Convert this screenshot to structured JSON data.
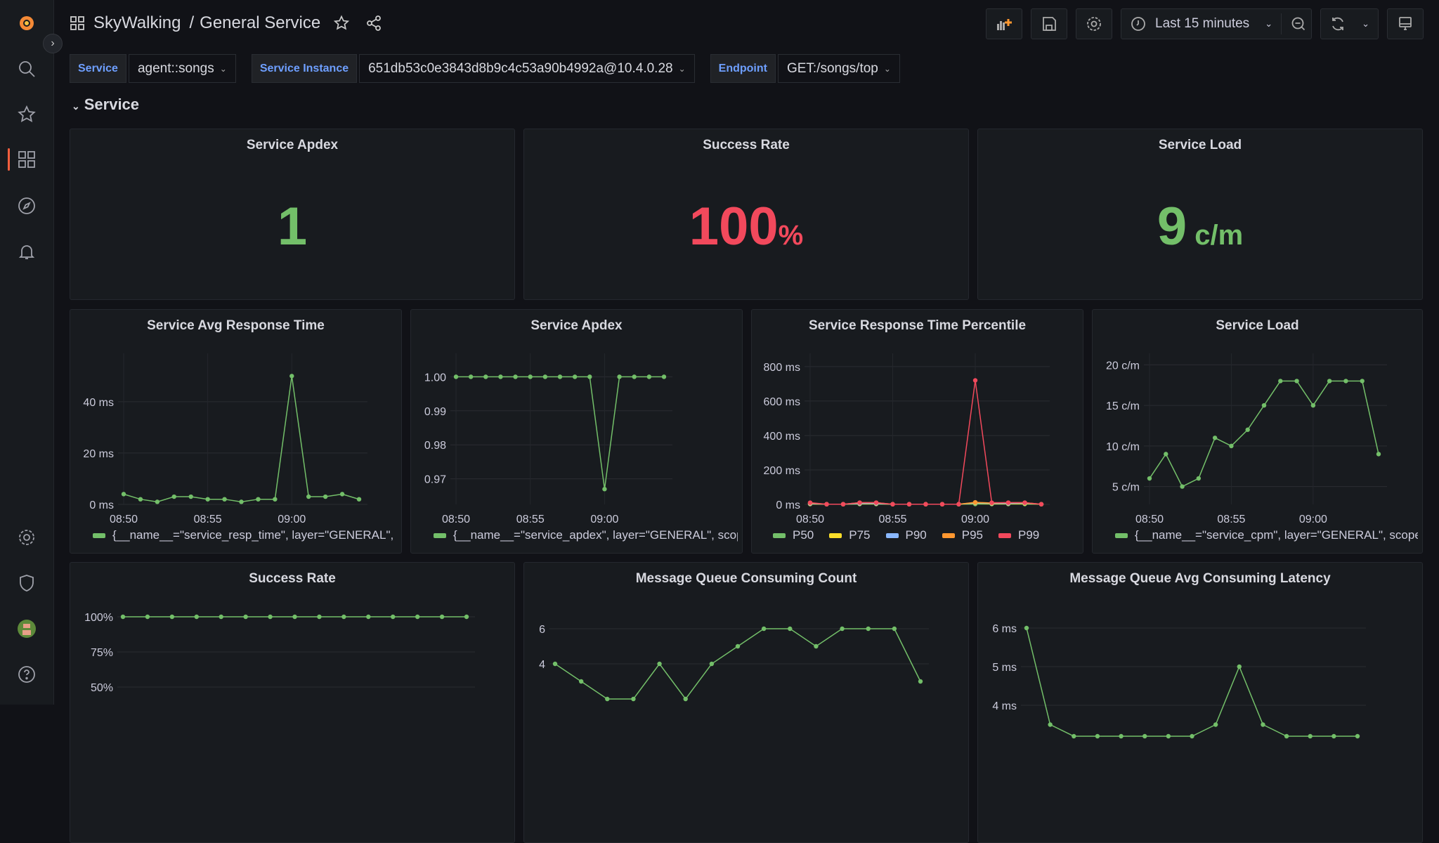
{
  "header": {
    "breadcrumb_root": "SkyWalking",
    "breadcrumb_sep": "/",
    "title": "General Service",
    "time_range": "Last 15 minutes"
  },
  "variables": [
    {
      "label": "Service",
      "value": "agent::songs"
    },
    {
      "label": "Service Instance",
      "value": "651db53c0e3843d8b9c4c53a90b4992a@10.4.0.28"
    },
    {
      "label": "Endpoint",
      "value": "GET:/songs/top"
    }
  ],
  "row_title": "Service",
  "colors": {
    "green": "#73bf69",
    "red": "#f2495c",
    "yellow": "#fade2a",
    "blue": "#8ab8ff",
    "orange": "#ff9830",
    "accent": "#f55f3e"
  },
  "stats": [
    {
      "title": "Service Apdex",
      "value": "1",
      "unit": "",
      "color": "#73bf69"
    },
    {
      "title": "Success Rate",
      "value": "100",
      "unit": "%",
      "color": "#f2495c"
    },
    {
      "title": "Service Load",
      "value": "9",
      "unit": " c/m",
      "color": "#73bf69"
    }
  ],
  "chart_data": [
    {
      "type": "line",
      "title": "Service Avg Response Time",
      "x": [
        "08:50",
        "08:51",
        "08:52",
        "08:53",
        "08:54",
        "08:55",
        "08:56",
        "08:57",
        "08:58",
        "08:59",
        "09:00",
        "09:01",
        "09:02",
        "09:03",
        "09:04"
      ],
      "xticks": [
        "08:50",
        "08:55",
        "09:00"
      ],
      "yticks": [
        {
          "v": 0,
          "l": "0 ms"
        },
        {
          "v": 20,
          "l": "20 ms"
        },
        {
          "v": 40,
          "l": "40 ms"
        }
      ],
      "ylim": [
        0,
        55
      ],
      "series": [
        {
          "name": "{__name__=\"service_resp_time\", layer=\"GENERAL\", scop",
          "color": "#73bf69",
          "values": [
            4,
            2,
            1,
            3,
            3,
            2,
            2,
            1,
            2,
            2,
            50,
            3,
            3,
            4,
            2
          ]
        }
      ]
    },
    {
      "type": "line",
      "title": "Service Apdex",
      "x": [
        "08:50",
        "08:51",
        "08:52",
        "08:53",
        "08:54",
        "08:55",
        "08:56",
        "08:57",
        "08:58",
        "08:59",
        "09:00",
        "09:01",
        "09:02",
        "09:03",
        "09:04"
      ],
      "xticks": [
        "08:50",
        "08:55",
        "09:00"
      ],
      "yticks": [
        {
          "v": 0.97,
          "l": "0.97"
        },
        {
          "v": 0.98,
          "l": "0.98"
        },
        {
          "v": 0.99,
          "l": "0.99"
        },
        {
          "v": 1.0,
          "l": "1.00"
        }
      ],
      "ylim": [
        0.9625,
        1.004
      ],
      "series": [
        {
          "name": "{__name__=\"service_apdex\", layer=\"GENERAL\", scope='",
          "color": "#73bf69",
          "values": [
            1,
            1,
            1,
            1,
            1,
            1,
            1,
            1,
            1,
            1,
            0.967,
            1,
            1,
            1,
            1
          ]
        }
      ]
    },
    {
      "type": "line",
      "title": "Service Response Time Percentile",
      "x": [
        "08:50",
        "08:51",
        "08:52",
        "08:53",
        "08:54",
        "08:55",
        "08:56",
        "08:57",
        "08:58",
        "08:59",
        "09:00",
        "09:01",
        "09:02",
        "09:03",
        "09:04"
      ],
      "xticks": [
        "08:50",
        "08:55",
        "09:00"
      ],
      "yticks": [
        {
          "v": 0,
          "l": "0 ms"
        },
        {
          "v": 200,
          "l": "200 ms"
        },
        {
          "v": 400,
          "l": "400 ms"
        },
        {
          "v": 600,
          "l": "600 ms"
        },
        {
          "v": 800,
          "l": "800 ms"
        }
      ],
      "ylim": [
        0,
        820
      ],
      "series": [
        {
          "name": "P50",
          "color": "#73bf69",
          "values": [
            2,
            1,
            1,
            2,
            2,
            1,
            1,
            1,
            1,
            1,
            2,
            2,
            2,
            2,
            1
          ]
        },
        {
          "name": "P75",
          "color": "#fade2a",
          "values": [
            3,
            1,
            1,
            4,
            4,
            1,
            1,
            1,
            1,
            1,
            8,
            4,
            4,
            5,
            1
          ]
        },
        {
          "name": "P90",
          "color": "#8ab8ff",
          "values": [
            5,
            1,
            1,
            6,
            6,
            1,
            1,
            1,
            1,
            1,
            10,
            6,
            6,
            8,
            1
          ]
        },
        {
          "name": "P95",
          "color": "#ff9830",
          "values": [
            8,
            1,
            1,
            10,
            10,
            1,
            1,
            1,
            1,
            1,
            12,
            8,
            10,
            10,
            1
          ]
        },
        {
          "name": "P99",
          "color": "#f2495c",
          "values": [
            10,
            1,
            1,
            10,
            10,
            1,
            1,
            1,
            1,
            1,
            720,
            10,
            10,
            10,
            1
          ]
        }
      ]
    },
    {
      "type": "line",
      "title": "Service Load",
      "x": [
        "08:50",
        "08:51",
        "08:52",
        "08:53",
        "08:54",
        "08:55",
        "08:56",
        "08:57",
        "08:58",
        "08:59",
        "09:00",
        "09:01",
        "09:02",
        "09:03",
        "09:04"
      ],
      "xticks": [
        "08:50",
        "08:55",
        "09:00"
      ],
      "yticks": [
        {
          "v": 5,
          "l": "5 c/m"
        },
        {
          "v": 10,
          "l": "10 c/m"
        },
        {
          "v": 15,
          "l": "15 c/m"
        },
        {
          "v": 20,
          "l": "20 c/m"
        }
      ],
      "ylim": [
        2.8,
        20.2
      ],
      "series": [
        {
          "name": "{__name__=\"service_cpm\", layer=\"GENERAL\", scope=\"S",
          "color": "#73bf69",
          "values": [
            6,
            9,
            5,
            6,
            11,
            10,
            12,
            15,
            18,
            18,
            15,
            18,
            18,
            18,
            9
          ]
        }
      ]
    },
    {
      "type": "line",
      "title": "Success Rate",
      "x": [
        "08:50",
        "08:51",
        "08:52",
        "08:53",
        "08:54",
        "08:55",
        "08:56",
        "08:57",
        "08:58",
        "08:59",
        "09:00",
        "09:01",
        "09:02",
        "09:03",
        "09:04"
      ],
      "xticks": [],
      "yticks": [
        {
          "v": 50,
          "l": "50%"
        },
        {
          "v": 75,
          "l": "75%"
        },
        {
          "v": 100,
          "l": "100%"
        }
      ],
      "ylim": [
        0,
        100
      ],
      "series": [
        {
          "color": "#73bf69",
          "values": [
            100,
            100,
            100,
            100,
            100,
            100,
            100,
            100,
            100,
            100,
            100,
            100,
            100,
            100,
            100
          ]
        }
      ]
    },
    {
      "type": "line",
      "title": "Message Queue Consuming Count",
      "x": [
        "08:50",
        "08:51",
        "08:52",
        "08:53",
        "08:54",
        "08:55",
        "08:56",
        "08:57",
        "08:58",
        "08:59",
        "09:00",
        "09:01",
        "09:02",
        "09:03",
        "09:04"
      ],
      "xticks": [],
      "yticks": [
        {
          "v": 4,
          "l": "4"
        },
        {
          "v": 6,
          "l": "6"
        }
      ],
      "ylim": [
        0,
        6
      ],
      "series": [
        {
          "color": "#73bf69",
          "values": [
            4,
            3,
            2,
            2,
            4,
            2,
            4,
            5,
            6,
            6,
            5,
            6,
            6,
            6,
            3
          ]
        }
      ]
    },
    {
      "type": "line",
      "title": "Message Queue Avg Consuming Latency",
      "x": [
        "08:50",
        "08:51",
        "08:52",
        "08:53",
        "08:54",
        "08:55",
        "08:56",
        "08:57",
        "08:58",
        "08:59",
        "09:00",
        "09:01",
        "09:02",
        "09:03",
        "09:04"
      ],
      "xticks": [],
      "yticks": [
        {
          "v": 4,
          "l": "4 ms"
        },
        {
          "v": 5,
          "l": "5 ms"
        },
        {
          "v": 6,
          "l": "6 ms"
        }
      ],
      "ylim": [
        3,
        6
      ],
      "series": [
        {
          "color": "#73bf69",
          "values": [
            6,
            3.5,
            3.2,
            3.2,
            3.2,
            3.2,
            3.2,
            3.2,
            3.5,
            5,
            3.5,
            3.2,
            3.2,
            3.2,
            3.2
          ]
        }
      ]
    }
  ]
}
